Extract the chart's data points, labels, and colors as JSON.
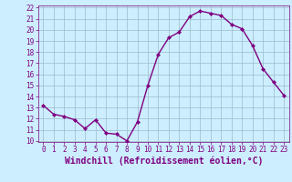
{
  "hours": [
    0,
    1,
    2,
    3,
    4,
    5,
    6,
    7,
    8,
    9,
    10,
    11,
    12,
    13,
    14,
    15,
    16,
    17,
    18,
    19,
    20,
    21,
    22,
    23
  ],
  "values": [
    13.2,
    12.4,
    12.2,
    11.9,
    11.1,
    11.9,
    10.7,
    10.6,
    10.0,
    11.7,
    15.0,
    17.8,
    19.3,
    19.8,
    21.2,
    21.7,
    21.5,
    21.3,
    20.5,
    20.1,
    18.6,
    16.5,
    15.3,
    14.1
  ],
  "line_color": "#800080",
  "marker": "D",
  "marker_size": 2.0,
  "bg_color": "#cceeff",
  "grid_color": "#99bbcc",
  "xlabel": "Windchill (Refroidissement éolien,°C)",
  "ylim": [
    10,
    22
  ],
  "xlim": [
    -0.5,
    23.5
  ],
  "yticks": [
    10,
    11,
    12,
    13,
    14,
    15,
    16,
    17,
    18,
    19,
    20,
    21,
    22
  ],
  "xticks": [
    0,
    1,
    2,
    3,
    4,
    5,
    6,
    7,
    8,
    9,
    10,
    11,
    12,
    13,
    14,
    15,
    16,
    17,
    18,
    19,
    20,
    21,
    22,
    23
  ],
  "tick_color": "#800080",
  "tick_fontsize": 5.5,
  "xlabel_fontsize": 7.0,
  "line_width": 1.0
}
